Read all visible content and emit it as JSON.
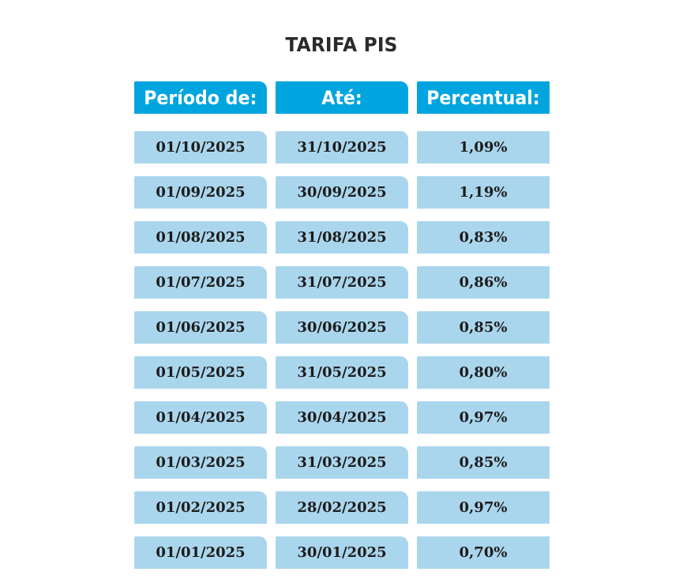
{
  "title": "TARIFA PIS",
  "headers": {
    "start": "Período de:",
    "end": "Até:",
    "percent": "Percentual:"
  },
  "rows": [
    {
      "start": "01/10/2025",
      "end": "31/10/2025",
      "percent": "1,09%"
    },
    {
      "start": "01/09/2025",
      "end": "30/09/2025",
      "percent": "1,19%"
    },
    {
      "start": "01/08/2025",
      "end": "31/08/2025",
      "percent": "0,83%"
    },
    {
      "start": "01/07/2025",
      "end": "31/07/2025",
      "percent": "0,86%"
    },
    {
      "start": "01/06/2025",
      "end": "30/06/2025",
      "percent": "0,85%"
    },
    {
      "start": "01/05/2025",
      "end": "31/05/2025",
      "percent": "0,80%"
    },
    {
      "start": "01/04/2025",
      "end": "30/04/2025",
      "percent": "0,97%"
    },
    {
      "start": "01/03/2025",
      "end": "31/03/2025",
      "percent": "0,85%"
    },
    {
      "start": "01/02/2025",
      "end": "28/02/2025",
      "percent": "0,97%"
    },
    {
      "start": "01/01/2025",
      "end": "30/01/2025",
      "percent": "0,70%"
    }
  ],
  "colors": {
    "header_bg": "#00a5df",
    "cell_bg": "#aad6ed",
    "title_text": "#2b2b2b",
    "cell_text": "#1c1c1c"
  }
}
